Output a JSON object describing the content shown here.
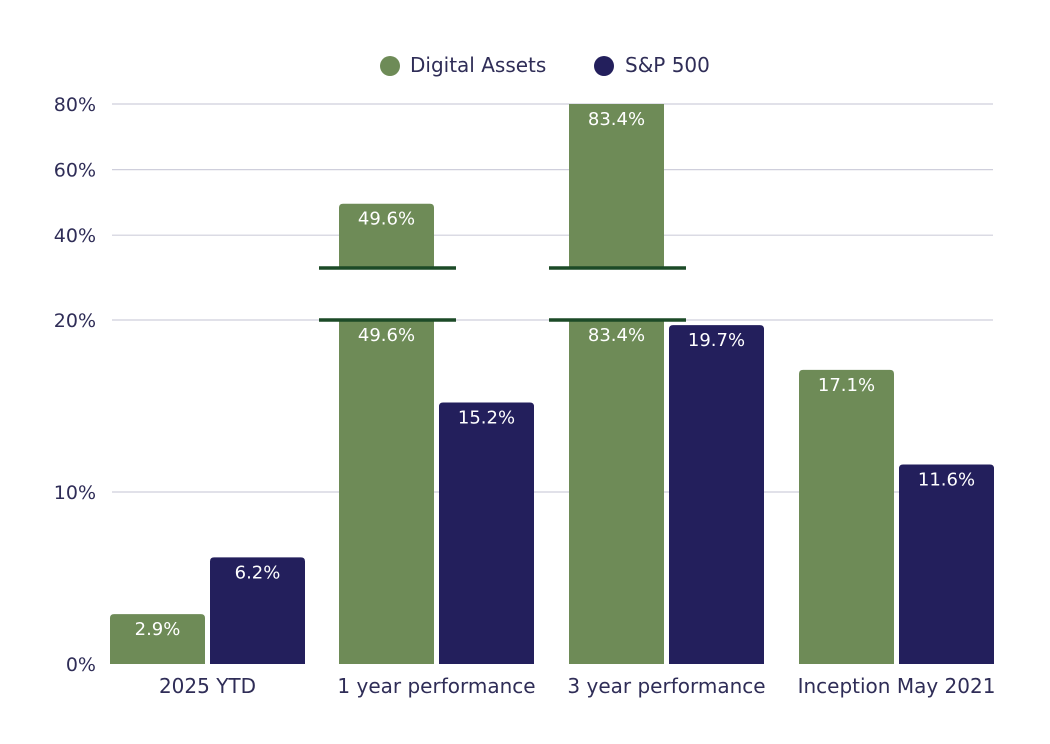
{
  "chart_data": {
    "type": "bar",
    "title": "",
    "xlabel": "",
    "ylabel": "",
    "categories": [
      "2025 YTD",
      "1 year performance",
      "3 year performance",
      "Inception May 2021"
    ],
    "series": [
      {
        "name": "Digital Assets",
        "values": [
          2.9,
          49.6,
          83.4,
          17.1
        ],
        "labels": [
          "2.9%",
          "49.6%",
          "83.4%",
          "17.1%"
        ]
      },
      {
        "name": "S&P 500",
        "values": [
          6.2,
          15.2,
          19.7,
          11.6
        ],
        "labels": [
          "6.2%",
          "15.2%",
          "19.7%",
          "11.6%"
        ]
      }
    ],
    "colors": {
      "Digital Assets": "#6e8b57",
      "S&P 500": "#231f5c",
      "axis_break": "#1c4a27"
    },
    "y_axis": {
      "broken": true,
      "lower_range": [
        0,
        20
      ],
      "upper_range": [
        30,
        80
      ],
      "lower_ticks": [
        "0%",
        "10%",
        "20%"
      ],
      "upper_ticks": [
        "40%",
        "60%",
        "80%"
      ]
    },
    "grid": true,
    "legend_position": "top-center"
  }
}
